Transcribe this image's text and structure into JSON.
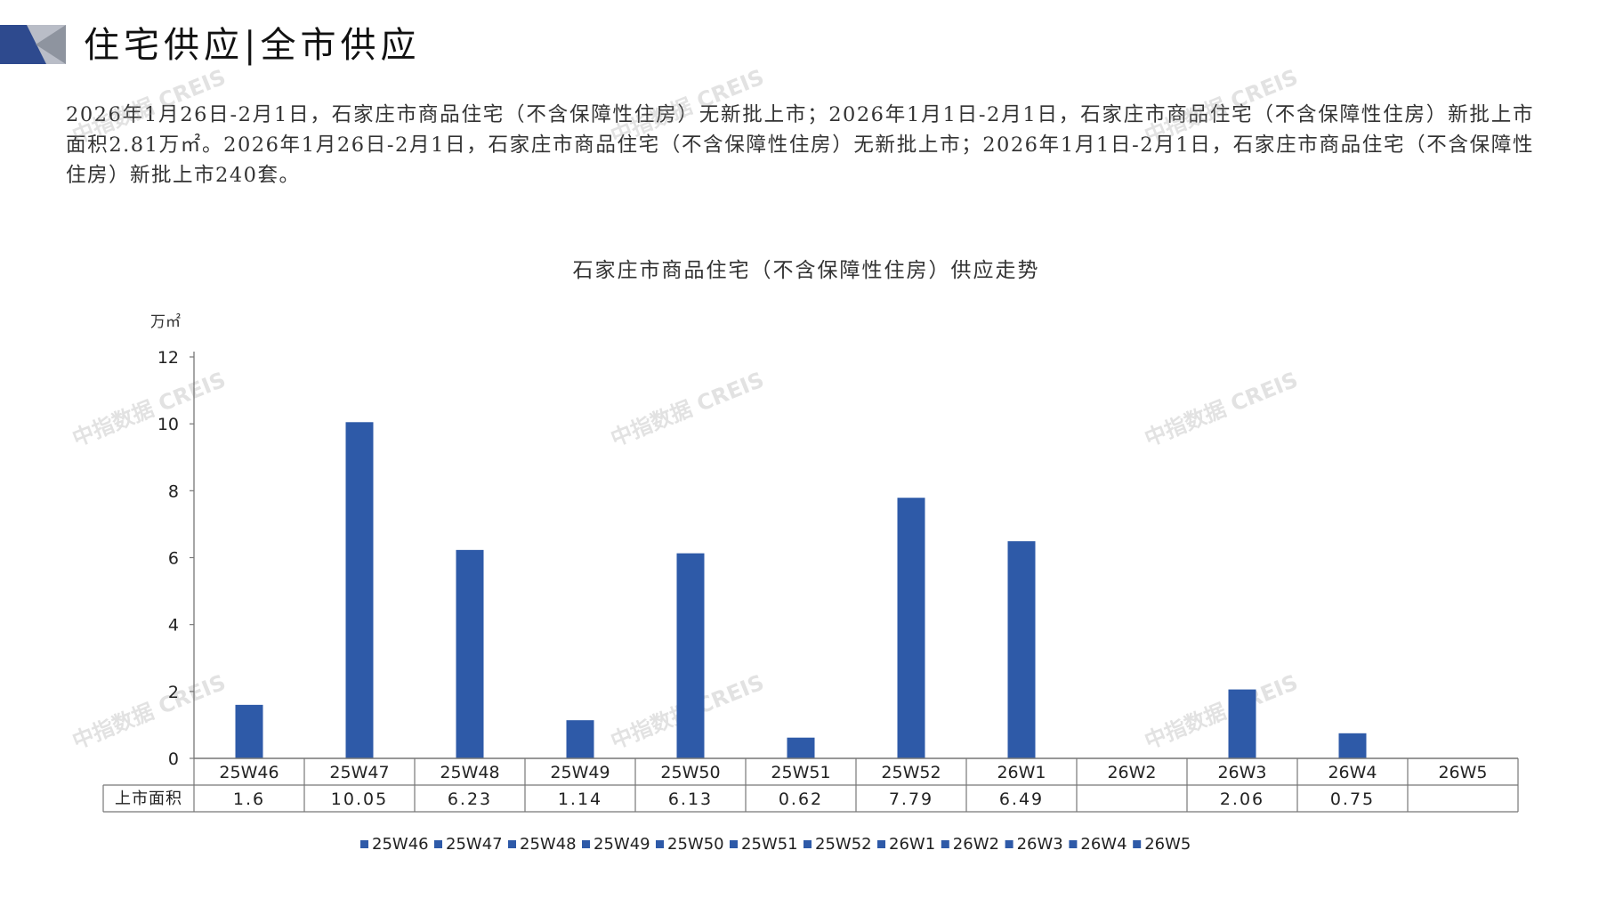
{
  "header": {
    "title": "住宅供应|全市供应"
  },
  "summary_text": "2026年1月26日-2月1日，石家庄市商品住宅（不含保障性住房）无新批上市；2026年1月1日-2月1日，石家庄市商品住宅（不含保障性住房）新批上市面积2.81万㎡。2026年1月26日-2月1日，石家庄市商品住宅（不含保障性住房）无新批上市；2026年1月1日-2月1日，石家庄市商品住宅（不含保障性住房）新批上市240套。",
  "watermark_text": "中指数据 CREIS",
  "colors": {
    "bar": "#2e5aa8",
    "logo_dark": "#2e4a8e",
    "logo_light": "#b9bdc7",
    "axis": "#777777"
  },
  "chart_data": {
    "type": "bar",
    "title": "石家庄市商品住宅（不含保障性住房）供应走势",
    "ylabel": "万㎡",
    "ylim": [
      0,
      12
    ],
    "yticks": [
      0,
      2,
      4,
      6,
      8,
      10,
      12
    ],
    "categories": [
      "25W46",
      "25W47",
      "25W48",
      "25W49",
      "25W50",
      "25W51",
      "25W52",
      "26W1",
      "26W2",
      "26W3",
      "26W4",
      "26W5"
    ],
    "series": [
      {
        "name": "上市面积",
        "values": [
          1.6,
          10.05,
          6.23,
          1.14,
          6.13,
          0.62,
          7.79,
          6.49,
          null,
          2.06,
          0.75,
          null
        ],
        "labels": [
          "1.6",
          "10.05",
          "6.23",
          "1.14",
          "6.13",
          "0.62",
          "7.79",
          "6.49",
          "",
          "2.06",
          "0.75",
          ""
        ]
      }
    ],
    "legend": [
      "25W46",
      "25W47",
      "25W48",
      "25W49",
      "25W50",
      "25W51",
      "25W52",
      "26W1",
      "26W2",
      "26W3",
      "26W4",
      "26W5"
    ],
    "legend_position": "bottom",
    "grid": false
  }
}
